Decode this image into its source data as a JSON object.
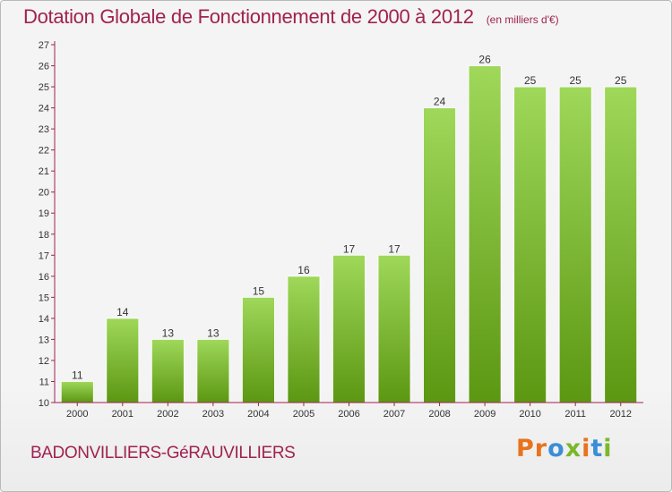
{
  "header": {
    "title": "Dotation Globale de Fonctionnement de 2000 à 2012",
    "unit": "(en milliers d'€)"
  },
  "footer": {
    "commune": "BADONVILLIERS-GéRAUVILLIERS",
    "logo_letters": [
      "P",
      "r",
      "o",
      "x",
      "i",
      "t",
      "i"
    ],
    "logo_colors": [
      "#e8731c",
      "#e8731c",
      "#3a8ed6",
      "#7ab82a",
      "#e8731c",
      "#3a8ed6",
      "#7ab82a"
    ]
  },
  "colors": {
    "bar_top": "#9fd85a",
    "bar_bottom": "#5c9712",
    "axis": "#a0224f",
    "title": "#a0224f",
    "text": "#333333"
  },
  "chart_data": {
    "type": "bar",
    "categories": [
      "2000",
      "2001",
      "2002",
      "2003",
      "2004",
      "2005",
      "2006",
      "2007",
      "2008",
      "2009",
      "2010",
      "2011",
      "2012"
    ],
    "values": [
      11,
      14,
      13,
      13,
      15,
      16,
      17,
      17,
      24,
      26,
      25,
      25,
      25
    ],
    "title": "Dotation Globale de Fonctionnement de 2000 à 2012",
    "xlabel": "",
    "ylabel": "",
    "ylim": [
      10,
      27
    ],
    "yticks": [
      10,
      11,
      12,
      13,
      14,
      15,
      16,
      17,
      18,
      19,
      20,
      21,
      22,
      23,
      24,
      25,
      26,
      27
    ],
    "data_labels": true,
    "grid": false
  }
}
